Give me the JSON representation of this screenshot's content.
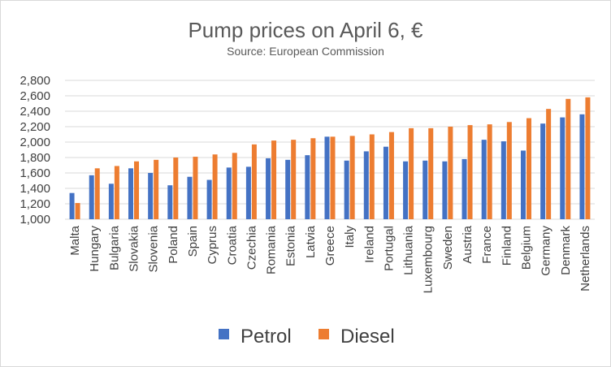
{
  "chart_data": {
    "type": "bar",
    "title": "Pump prices on April 6, €",
    "subtitle": "Source: European Commission",
    "xlabel": "",
    "ylabel": "",
    "ylim": [
      1000,
      2800
    ],
    "ytick_labels": [
      "1,000",
      "1,200",
      "1,400",
      "1,600",
      "1,800",
      "2,000",
      "2,200",
      "2,400",
      "2,600",
      "2,800"
    ],
    "grid": true,
    "legend_position": "bottom",
    "categories": [
      "Malta",
      "Hungary",
      "Bulgaria",
      "Slovakia",
      "Slovenia",
      "Poland",
      "Spain",
      "Cyprus",
      "Croatia",
      "Czechia",
      "Romania",
      "Estonia",
      "Latvia",
      "Greece",
      "Italy",
      "Ireland",
      "Portugal",
      "Lithuania",
      "Luxembourg",
      "Sweden",
      "Austria",
      "France",
      "Finland",
      "Belgium",
      "Germany",
      "Denmark",
      "Netherlands"
    ],
    "series": [
      {
        "name": "Petrol",
        "color": "#4472c4",
        "values": [
          1340,
          1570,
          1460,
          1660,
          1600,
          1440,
          1550,
          1510,
          1670,
          1680,
          1790,
          1770,
          1830,
          2070,
          1760,
          1880,
          1940,
          1750,
          1760,
          1750,
          1780,
          2030,
          2010,
          1890,
          2240,
          2320,
          2360
        ]
      },
      {
        "name": "Diesel",
        "color": "#ed7d31",
        "values": [
          1210,
          1660,
          1690,
          1750,
          1770,
          1800,
          1810,
          1840,
          1860,
          1970,
          2020,
          2030,
          2050,
          2070,
          2080,
          2100,
          2130,
          2180,
          2180,
          2200,
          2220,
          2230,
          2260,
          2310,
          2430,
          2560,
          2580
        ]
      }
    ]
  }
}
